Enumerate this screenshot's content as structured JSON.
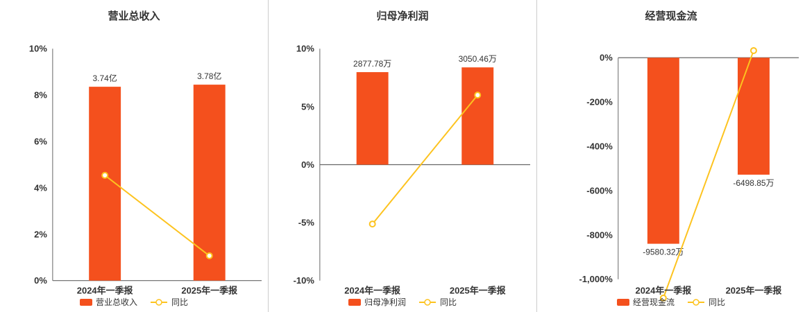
{
  "colors": {
    "bar": "#f4501d",
    "line": "#fdc31f",
    "axis": "#666666",
    "text": "#333333",
    "divider": "#cccccc",
    "background": "#ffffff"
  },
  "chart_data": [
    {
      "type": "bar",
      "title": "营业总收入",
      "categories": [
        "2024年一季报",
        "2025年一季报"
      ],
      "bar_series": {
        "name": "营业总收入",
        "value_labels": [
          "3.74亿",
          "3.78亿"
        ],
        "display_pct": [
          8.36,
          8.45
        ]
      },
      "line_series": {
        "name": "同比",
        "values_pct": [
          4.54,
          1.07
        ]
      },
      "ylim": [
        0,
        10
      ],
      "yticks": [
        {
          "v": 0,
          "label": "0%"
        },
        {
          "v": 2,
          "label": "2%"
        },
        {
          "v": 4,
          "label": "4%"
        },
        {
          "v": 6,
          "label": "6%"
        },
        {
          "v": 8,
          "label": "8%"
        },
        {
          "v": 10,
          "label": "10%"
        }
      ],
      "legend": [
        "营业总收入",
        "同比"
      ],
      "grid": false,
      "legend_position": "bottom"
    },
    {
      "type": "bar",
      "title": "归母净利润",
      "categories": [
        "2024年一季报",
        "2025年一季报"
      ],
      "bar_series": {
        "name": "归母净利润",
        "value_labels": [
          "2877.78万",
          "3050.46万"
        ],
        "display_pct": [
          7.98,
          8.39
        ]
      },
      "line_series": {
        "name": "同比",
        "values_pct": [
          -5.12,
          6.0
        ]
      },
      "ylim": [
        -10,
        10
      ],
      "yticks": [
        {
          "v": -10,
          "label": "-10%"
        },
        {
          "v": -5,
          "label": "-5%"
        },
        {
          "v": 0,
          "label": "0%"
        },
        {
          "v": 5,
          "label": "5%"
        },
        {
          "v": 10,
          "label": "10%"
        }
      ],
      "legend": [
        "归母净利润",
        "同比"
      ],
      "grid": false,
      "legend_position": "bottom"
    },
    {
      "type": "bar",
      "title": "经营现金流",
      "categories": [
        "2024年一季报",
        "2025年一季报"
      ],
      "bar_series": {
        "name": "经营现金流",
        "value_labels": [
          "-9580.32万",
          "-6498.85万"
        ],
        "display_pct": [
          -840,
          -528
        ]
      },
      "line_series": {
        "name": "同比",
        "values_pct": [
          -1085,
          32.2
        ]
      },
      "ylim": [
        -1000,
        0
      ],
      "yticks": [
        {
          "v": 0,
          "label": "0%"
        },
        {
          "v": -200,
          "label": "-200%"
        },
        {
          "v": -400,
          "label": "-400%"
        },
        {
          "v": -600,
          "label": "-600%"
        },
        {
          "v": -800,
          "label": "-800%"
        },
        {
          "v": -1000,
          "label": "-1,000%"
        }
      ],
      "legend": [
        "经营现金流",
        "同比"
      ],
      "grid": false,
      "legend_position": "bottom"
    }
  ]
}
